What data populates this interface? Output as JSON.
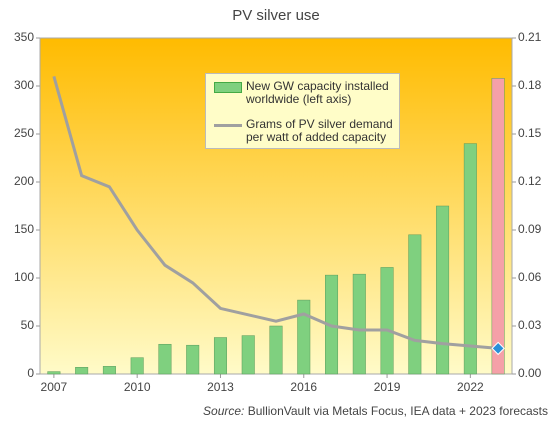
{
  "chart_data": {
    "type": "bar-line",
    "title": "PV silver use",
    "x": [
      2007,
      2008,
      2009,
      2010,
      2011,
      2012,
      2013,
      2014,
      2015,
      2016,
      2017,
      2018,
      2019,
      2020,
      2021,
      2022,
      2023
    ],
    "xlim": [
      2006.5,
      2023.5
    ],
    "xticks": [
      2007,
      2010,
      2013,
      2016,
      2019,
      2022
    ],
    "ylim": [
      0,
      350
    ],
    "yticks": [
      0,
      50,
      100,
      150,
      200,
      250,
      300,
      350
    ],
    "y2lim": [
      0,
      0.21
    ],
    "y2ticks": [
      {
        "value": 0,
        "label": "0.00"
      },
      0.03,
      0.06,
      0.09,
      0.12,
      0.15,
      0.18,
      0.21
    ],
    "series": [
      {
        "name": "New GW capacity installed worldwide (left axis)",
        "type": "bar",
        "color": "#7fd07f",
        "point_colors": [
          "#7fd07f",
          "#7fd07f",
          "#7fd07f",
          "#7fd07f",
          "#7fd07f",
          "#7fd07f",
          "#7fd07f",
          "#7fd07f",
          "#7fd07f",
          "#7fd07f",
          "#7fd07f",
          "#7fd07f",
          "#7fd07f",
          "#7fd07f",
          "#7fd07f",
          "#7fd07f",
          "#f5a0a8"
        ],
        "values": [
          2.5,
          7,
          8,
          17,
          31,
          30,
          38,
          40,
          50,
          77,
          103,
          104,
          111,
          145,
          175,
          240,
          308
        ]
      },
      {
        "name": "Grams of PV silver demand per watt of added capacity",
        "type": "line",
        "axis": "y2",
        "color": "#a0a0a0",
        "end_marker_color": "#2a8fd8",
        "values": [
          0.186,
          0.124,
          0.117,
          0.09,
          0.068,
          0.057,
          0.041,
          0.037,
          0.033,
          0.0375,
          0.03,
          0.0275,
          0.0275,
          0.021,
          0.019,
          0.0175,
          0.016
        ]
      }
    ],
    "source_label": "Source:",
    "source": "BullionVault via Metals Focus, IEA data + 2023 forecasts"
  }
}
